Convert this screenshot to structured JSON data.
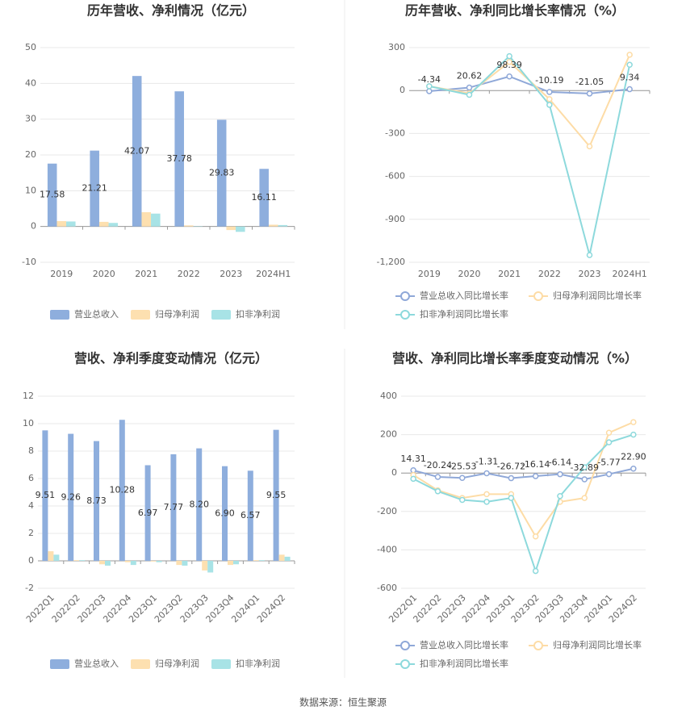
{
  "chart_data": [
    {
      "type": "bar",
      "title": "历年营收、净利情况（亿元）",
      "categories": [
        "2019",
        "2020",
        "2021",
        "2022",
        "2023",
        "2024H1"
      ],
      "series": [
        {
          "name": "营业总收入",
          "color": "#8eaedd",
          "values": [
            17.58,
            21.21,
            42.07,
            37.78,
            29.83,
            16.11
          ],
          "data_labels": true
        },
        {
          "name": "归母净利润",
          "color": "#fde0b0",
          "values": [
            1.5,
            1.3,
            4.0,
            0.3,
            -1.0,
            0.5
          ]
        },
        {
          "name": "扣非净利润",
          "color": "#a8e3e6",
          "values": [
            1.4,
            1.0,
            3.6,
            0.1,
            -1.5,
            0.4
          ]
        }
      ],
      "ylim": [
        -10,
        50
      ],
      "yticks": [
        -10,
        0,
        10,
        20,
        30,
        40,
        50
      ],
      "grid": true
    },
    {
      "type": "line",
      "title": "历年营收、净利同比增长率情况（%）",
      "categories": [
        "2019",
        "2020",
        "2021",
        "2022",
        "2023",
        "2024H1"
      ],
      "series": [
        {
          "name": "营业总收入同比增长率",
          "color": "#8fa8d8",
          "values": [
            -4.34,
            20.62,
            98.39,
            -10.19,
            -21.05,
            9.34
          ],
          "data_labels": true
        },
        {
          "name": "归母净利润同比增长率",
          "color": "#fddca6",
          "values": [
            30,
            -20,
            200,
            -60,
            -390,
            250
          ]
        },
        {
          "name": "扣非净利润同比增长率",
          "color": "#8dd9dc",
          "values": [
            30,
            -30,
            240,
            -100,
            -1150,
            180
          ]
        }
      ],
      "ylim": [
        -1200,
        300
      ],
      "yticks": [
        {
          "value": -1200,
          "label": "-1,200"
        },
        -900,
        -600,
        -300,
        0,
        300
      ],
      "grid": true
    },
    {
      "type": "bar",
      "title": "营收、净利季度变动情况（亿元）",
      "categories": [
        "2022Q1",
        "2022Q2",
        "2022Q3",
        "2022Q4",
        "2023Q1",
        "2023Q2",
        "2023Q3",
        "2023Q4",
        "2024Q1",
        "2024Q2"
      ],
      "series": [
        {
          "name": "营业总收入",
          "color": "#8eaedd",
          "values": [
            9.51,
            9.26,
            8.73,
            10.28,
            6.97,
            7.77,
            8.2,
            6.9,
            6.57,
            9.55
          ],
          "value_labels": [
            "9.51",
            "9.26",
            "8.73",
            "10.28",
            "6.97",
            "7.77",
            "8.20",
            "6.90",
            "6.57",
            "9.55"
          ],
          "data_labels": true
        },
        {
          "name": "归母净利润",
          "color": "#fde0b0",
          "values": [
            0.7,
            0.05,
            -0.25,
            -0.1,
            -0.05,
            -0.3,
            -0.7,
            -0.3,
            0.05,
            0.45
          ]
        },
        {
          "name": "扣非净利润",
          "color": "#a8e3e6",
          "values": [
            0.45,
            0.05,
            -0.35,
            -0.3,
            -0.1,
            -0.35,
            -0.85,
            -0.25,
            0.05,
            0.3
          ]
        }
      ],
      "ylim": [
        -2,
        12
      ],
      "yticks": [
        -2,
        0,
        2,
        4,
        6,
        8,
        10,
        12
      ],
      "grid": true
    },
    {
      "type": "line",
      "title": "营收、净利同比增长率季度变动情况（%）",
      "categories": [
        "2022Q1",
        "2022Q2",
        "2022Q3",
        "2022Q4",
        "2023Q1",
        "2023Q2",
        "2023Q3",
        "2023Q4",
        "2024Q1",
        "2024Q2"
      ],
      "series": [
        {
          "name": "营业总收入同比增长率",
          "color": "#8fa8d8",
          "values": [
            14.31,
            -20.24,
            -25.53,
            -1.31,
            -26.72,
            -16.14,
            -6.14,
            -32.89,
            -5.77,
            22.9
          ],
          "value_labels": [
            "14.31",
            "-20.24",
            "-25.53",
            "-1.31",
            "-26.72",
            "-16.14",
            "-6.14",
            "-32.89",
            "-5.77",
            "22.90"
          ],
          "data_labels": true
        },
        {
          "name": "归母净利润同比增长率",
          "color": "#fddca6",
          "values": [
            -10,
            -90,
            -130,
            -110,
            -110,
            -330,
            -150,
            -130,
            210,
            265
          ]
        },
        {
          "name": "扣非净利润同比增长率",
          "color": "#8dd9dc",
          "values": [
            -30,
            -95,
            -140,
            -150,
            -130,
            -510,
            -120,
            30,
            160,
            200
          ]
        }
      ],
      "ylim": [
        -600,
        400
      ],
      "yticks": [
        -600,
        -400,
        -200,
        0,
        200,
        400
      ],
      "grid": true
    }
  ],
  "source": "数据来源：恒生聚源"
}
